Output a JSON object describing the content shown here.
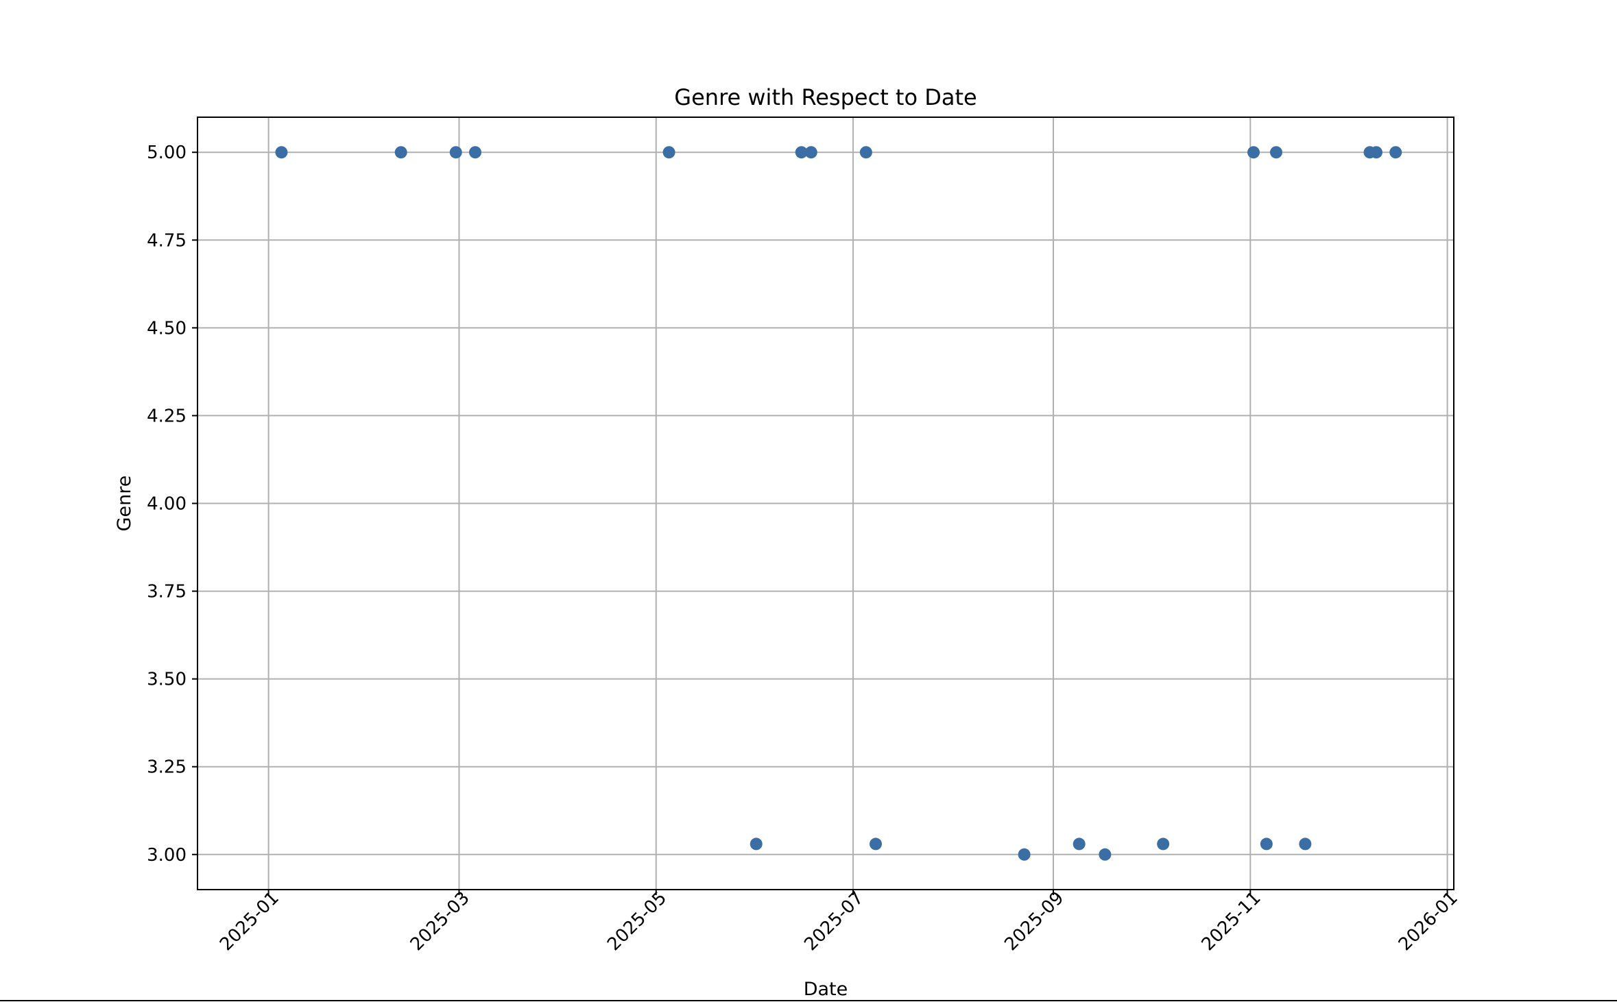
{
  "chart_data": {
    "type": "scatter",
    "title": "Genre with Respect to Date",
    "xlabel": "Date",
    "ylabel": "Genre",
    "xlim": [
      "2024-12-10",
      "2026-01-03"
    ],
    "ylim": [
      2.9,
      5.1
    ],
    "xticks": [
      "2025-01",
      "2025-03",
      "2025-05",
      "2025-07",
      "2025-09",
      "2025-11",
      "2026-01"
    ],
    "yticks": [
      "3.00",
      "3.25",
      "3.50",
      "3.75",
      "4.00",
      "4.25",
      "4.50",
      "4.75",
      "5.00"
    ],
    "grid": true,
    "marker_color": "#3a6ea5",
    "x": [
      "2025-01-05",
      "2025-02-11",
      "2025-02-28",
      "2025-03-06",
      "2025-05-05",
      "2025-06-01",
      "2025-06-15",
      "2025-06-18",
      "2025-07-05",
      "2025-07-08",
      "2025-08-23",
      "2025-09-09",
      "2025-09-17",
      "2025-10-05",
      "2025-11-02",
      "2025-11-06",
      "2025-11-09",
      "2025-11-18",
      "2025-12-08",
      "2025-12-10",
      "2025-12-16"
    ],
    "y": [
      5.0,
      5.0,
      5.0,
      5.0,
      5.0,
      3.03,
      5.0,
      5.0,
      5.0,
      3.03,
      3.0,
      3.03,
      3.0,
      3.03,
      5.0,
      3.03,
      5.0,
      3.03,
      5.0,
      5.0,
      5.0
    ]
  }
}
